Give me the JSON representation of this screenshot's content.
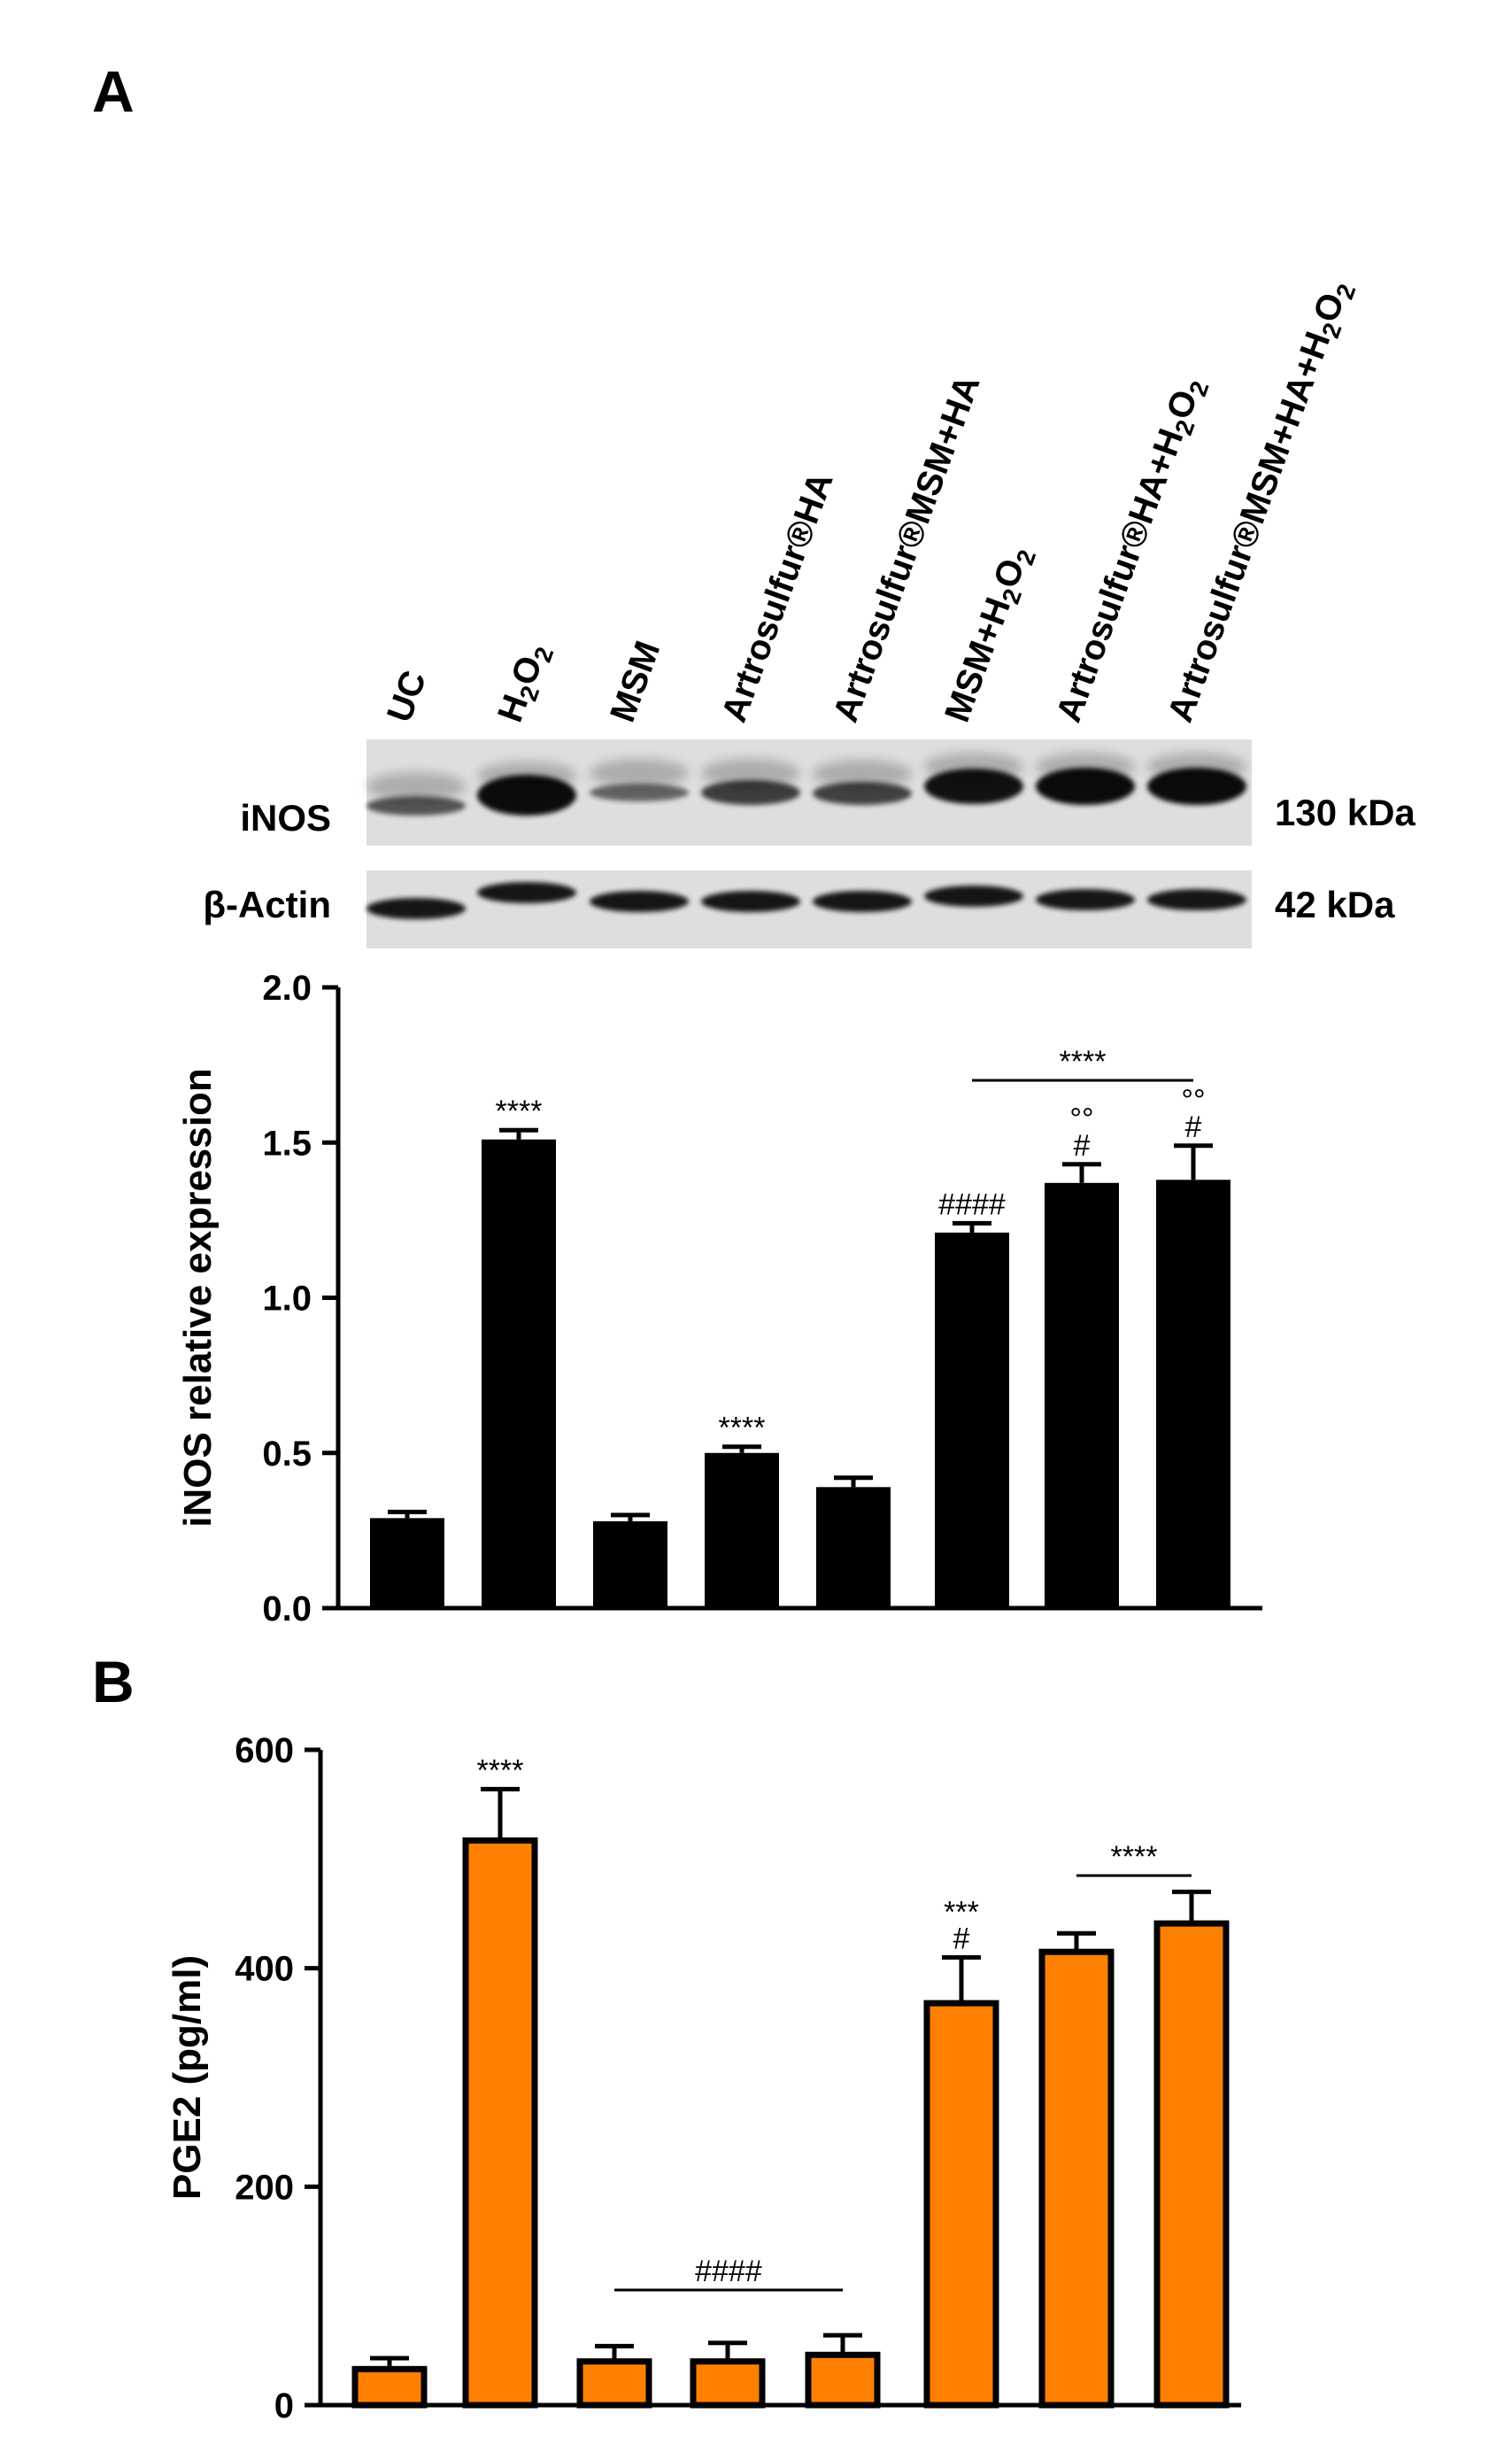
{
  "panel_a": {
    "letter": "A",
    "lanes": [
      {
        "pre": "UC"
      },
      {
        "pre": "H",
        "sub1": "2",
        "mid": "O",
        "sub2": "2"
      },
      {
        "pre": "MSM"
      },
      {
        "pre": "Artrosulfur®HA"
      },
      {
        "pre": "Artrosulfur®MSM+HA"
      },
      {
        "pre": "MSM+H",
        "sub1": "2",
        "mid": "O",
        "sub2": "2"
      },
      {
        "pre": "Artrosulfur®HA+H",
        "sub1": "2",
        "mid": "O",
        "sub2": "2"
      },
      {
        "pre": "Artrosulfur®MSM+HA+H",
        "sub1": "2",
        "mid": "O",
        "sub2": "2"
      }
    ],
    "blots": [
      {
        "label": "iNOS",
        "size": "130 kDa"
      },
      {
        "label": "β-Actin",
        "size": "42 kDa"
      }
    ]
  },
  "panel_b": {
    "letter": "B"
  },
  "colors": {
    "panel_a_bars": "#000000",
    "panel_b_bars": "#ff8000",
    "bar_edge": "#000000"
  },
  "chart_data": [
    {
      "type": "bar",
      "panel": "A",
      "categories": [
        "UC",
        "H2O2",
        "MSM",
        "Artrosulfur®HA",
        "Artrosulfur®MSM+HA",
        "MSM+H2O2",
        "Artrosulfur®HA+H2O2",
        "Artrosulfur®MSM+HA+H2O2"
      ],
      "values": [
        0.29,
        1.51,
        0.28,
        0.5,
        0.39,
        1.21,
        1.37,
        1.38
      ],
      "errors": [
        0.02,
        0.03,
        0.02,
        0.02,
        0.03,
        0.03,
        0.06,
        0.11
      ],
      "ylabel": "iNOS relative expression",
      "ylim": [
        0,
        2.0
      ],
      "yticks": [
        0.0,
        0.5,
        1.0,
        1.5,
        2.0
      ],
      "ytick_labels": [
        "0.0",
        "0.5",
        "1.0",
        "1.5",
        "2.0"
      ],
      "grid": false,
      "annotations": [
        {
          "bar": 1,
          "lines": [
            "****"
          ]
        },
        {
          "bar": 3,
          "lines": [
            "****"
          ]
        },
        {
          "bar": 5,
          "lines": [
            "####"
          ]
        },
        {
          "bar": 6,
          "lines": [
            "°°",
            "#"
          ]
        },
        {
          "bar": 7,
          "lines": [
            "°°",
            "#"
          ]
        }
      ],
      "brackets": [
        {
          "from": 5,
          "to": 7,
          "text": "****"
        }
      ]
    },
    {
      "type": "bar",
      "panel": "B",
      "categories": [
        "UC",
        "H2O2",
        "MSM",
        "Artrosulfur®HA",
        "Artrosulfur®MSM+HA",
        "MSM+H2O2",
        "Artrosulfur®HA+H2O2",
        "Artrosulfur®MSM+HA+H2O2"
      ],
      "values": [
        33,
        517,
        40,
        40,
        46,
        368,
        415,
        441
      ],
      "errors": [
        10,
        47,
        14,
        17,
        18,
        42,
        17,
        29
      ],
      "ylabel": "PGE2 (pg/ml)",
      "ylim": [
        0,
        600
      ],
      "yticks": [
        0,
        200,
        400,
        600
      ],
      "ytick_labels": [
        "0",
        "200",
        "400",
        "600"
      ],
      "grid": false,
      "annotations": [
        {
          "bar": 1,
          "lines": [
            "****"
          ]
        },
        {
          "bar": 5,
          "lines": [
            "***",
            "#"
          ]
        }
      ],
      "brackets": [
        {
          "from": 2,
          "to": 4,
          "text": "####"
        },
        {
          "from": 6,
          "to": 7,
          "text": "****"
        }
      ]
    }
  ]
}
